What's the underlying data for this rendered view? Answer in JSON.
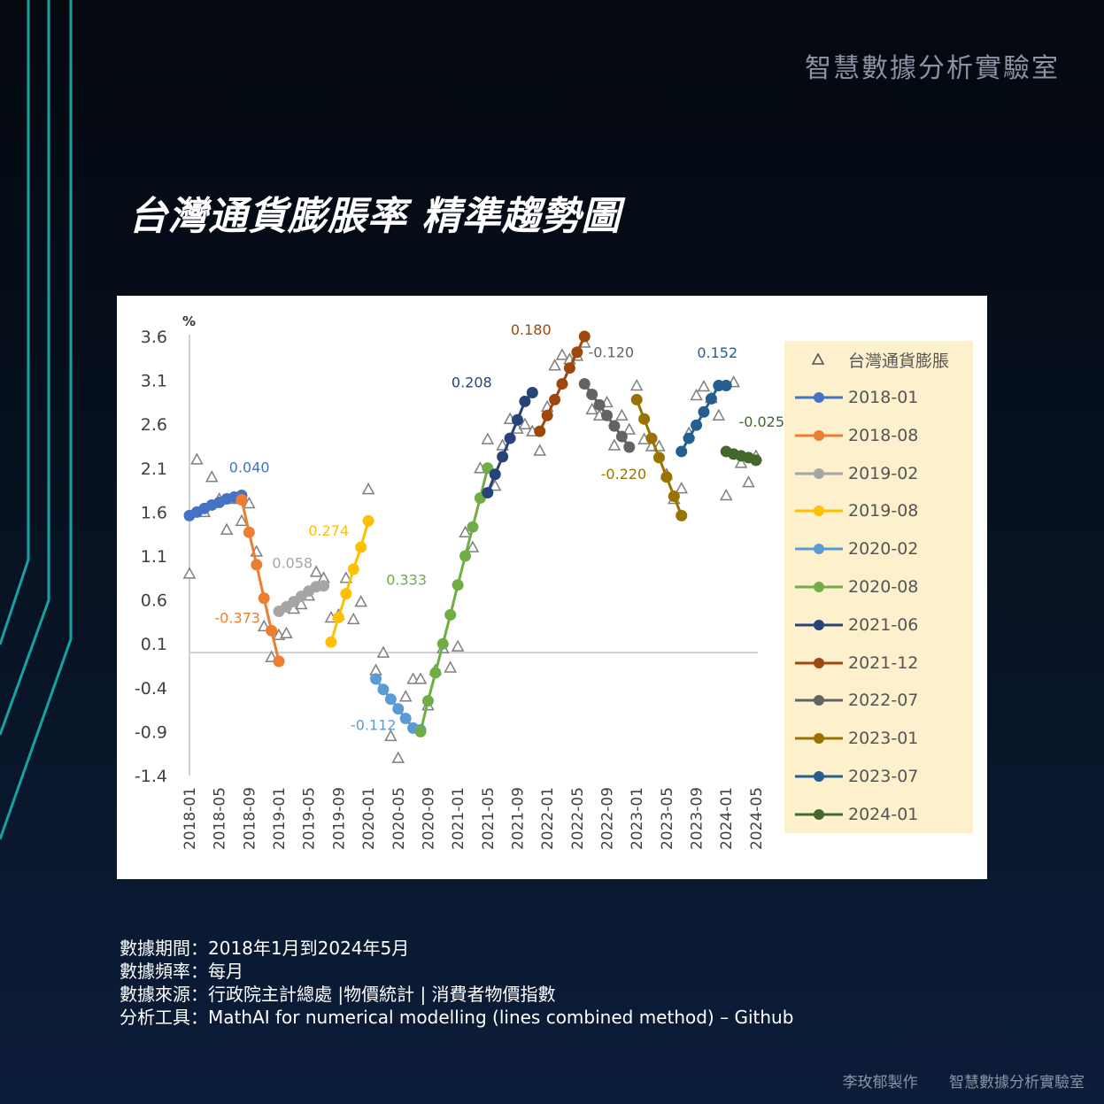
{
  "header": {
    "brand": "智慧數據分析實驗室"
  },
  "page_title": "台灣通貨膨脹率  精準趨勢圖",
  "info": {
    "period": "數據期間：2018年1月到2024年5月",
    "frequency": "數據頻率：每月",
    "source": "數據來源：行政院主計總處 |物價統計 | 消費者物價指數",
    "tool": "分析工具：MathAI  for numerical modelling (lines combined method) – Github"
  },
  "footer": {
    "author": "李玫郁製作",
    "brand": "智慧數據分析實驗室"
  },
  "colors": {
    "accent_line": "#14a3a3",
    "legend_bg": "#fdf0cc"
  },
  "chart_data": {
    "type": "line",
    "y_unit": "%",
    "ylim": [
      -1.4,
      3.6
    ],
    "yticks": [
      3.6,
      3.1,
      2.6,
      2.1,
      1.6,
      1.1,
      0.6,
      0.1,
      -0.4,
      -0.9,
      -1.4
    ],
    "ytick_labels": [
      "3.6",
      "3.1",
      "2.6",
      "2.1",
      "1.6",
      "1.1",
      "0.6",
      "0.1",
      "-0.4",
      "-0.9",
      "-1.4"
    ],
    "xtick_labels": [
      "2018-01",
      "2018-05",
      "2018-09",
      "2019-01",
      "2019-05",
      "2019-09",
      "2020-01",
      "2020-05",
      "2020-09",
      "2021-01",
      "2021-05",
      "2021-09",
      "2022-01",
      "2022-05",
      "2022-09",
      "2023-01",
      "2023-05",
      "2023-09",
      "2024-01",
      "2024-05"
    ],
    "grid": false,
    "legend_position": "right",
    "actual": {
      "name": "台灣通貨膨脹",
      "x": [
        "2018-01",
        "2018-02",
        "2018-03",
        "2018-04",
        "2018-05",
        "2018-06",
        "2018-07",
        "2018-08",
        "2018-09",
        "2018-10",
        "2018-11",
        "2018-12",
        "2019-01",
        "2019-02",
        "2019-03",
        "2019-04",
        "2019-05",
        "2019-06",
        "2019-07",
        "2019-08",
        "2019-09",
        "2019-10",
        "2019-11",
        "2019-12",
        "2020-01",
        "2020-02",
        "2020-03",
        "2020-04",
        "2020-05",
        "2020-06",
        "2020-07",
        "2020-08",
        "2020-09",
        "2020-10",
        "2020-11",
        "2020-12",
        "2021-01",
        "2021-02",
        "2021-03",
        "2021-04",
        "2021-05",
        "2021-06",
        "2021-07",
        "2021-08",
        "2021-09",
        "2021-10",
        "2021-11",
        "2021-12",
        "2022-01",
        "2022-02",
        "2022-03",
        "2022-04",
        "2022-05",
        "2022-06",
        "2022-07",
        "2022-08",
        "2022-09",
        "2022-10",
        "2022-11",
        "2022-12",
        "2023-01",
        "2023-02",
        "2023-03",
        "2023-04",
        "2023-05",
        "2023-06",
        "2023-07",
        "2023-08",
        "2023-09",
        "2023-10",
        "2023-11",
        "2023-12",
        "2024-01",
        "2024-02",
        "2024-03",
        "2024-04",
        "2024-05"
      ],
      "values": [
        0.9,
        2.2,
        1.6,
        2.0,
        1.75,
        1.4,
        1.75,
        1.5,
        1.7,
        1.15,
        0.3,
        -0.05,
        0.2,
        0.22,
        0.5,
        0.55,
        0.65,
        0.92,
        0.85,
        0.4,
        0.43,
        0.85,
        0.38,
        0.58,
        1.86,
        -0.2,
        0.0,
        -0.95,
        -1.2,
        -0.5,
        -0.3,
        -0.3,
        -0.6,
        -0.2,
        0.05,
        -0.17,
        0.07,
        1.37,
        1.2,
        2.1,
        2.43,
        1.9,
        2.36,
        2.66,
        2.55,
        2.6,
        2.52,
        2.3,
        2.8,
        3.27,
        3.39,
        3.34,
        3.38,
        3.53,
        2.77,
        2.7,
        2.85,
        2.36,
        2.7,
        2.54,
        3.04,
        2.43,
        2.35,
        2.35,
        2.03,
        1.75,
        1.87,
        2.5,
        2.93,
        3.03,
        2.9,
        2.7,
        1.79,
        3.08,
        2.16,
        1.94,
        2.24
      ]
    },
    "series": [
      {
        "name": "2018-01",
        "color": "#4472c4",
        "x": [
          "2018-01",
          "2018-02",
          "2018-03",
          "2018-04",
          "2018-05",
          "2018-06",
          "2018-07",
          "2018-08"
        ],
        "values": [
          1.56,
          1.6,
          1.64,
          1.68,
          1.71,
          1.75,
          1.77,
          1.79
        ],
        "slope_label": "0.040"
      },
      {
        "name": "2018-08",
        "color": "#ed7d31",
        "x": [
          "2018-08",
          "2018-09",
          "2018-10",
          "2018-11",
          "2018-12",
          "2019-01"
        ],
        "values": [
          1.74,
          1.37,
          1.0,
          0.62,
          0.25,
          -0.1
        ],
        "slope_label": "-0.373"
      },
      {
        "name": "2019-02",
        "color": "#a5a5a5",
        "x": [
          "2019-01",
          "2019-02",
          "2019-03",
          "2019-04",
          "2019-05",
          "2019-06",
          "2019-07"
        ],
        "values": [
          0.47,
          0.52,
          0.58,
          0.64,
          0.7,
          0.75,
          0.76
        ],
        "slope_label": "0.058"
      },
      {
        "name": "2019-08",
        "color": "#ffc000",
        "x": [
          "2019-08",
          "2019-09",
          "2019-10",
          "2019-11",
          "2019-12",
          "2020-01"
        ],
        "values": [
          0.12,
          0.4,
          0.67,
          0.95,
          1.2,
          1.5
        ],
        "slope_label": "0.274"
      },
      {
        "name": "2020-02",
        "color": "#5b9bd5",
        "x": [
          "2020-02",
          "2020-03",
          "2020-04",
          "2020-05",
          "2020-06",
          "2020-07",
          "2020-08"
        ],
        "values": [
          -0.3,
          -0.42,
          -0.53,
          -0.64,
          -0.75,
          -0.86,
          -0.88
        ],
        "slope_label": "-0.112"
      },
      {
        "name": "2020-08",
        "color": "#70ad47",
        "x": [
          "2020-08",
          "2020-09",
          "2020-10",
          "2020-11",
          "2020-12",
          "2021-01",
          "2021-02",
          "2021-03",
          "2021-04",
          "2021-05"
        ],
        "values": [
          -0.9,
          -0.55,
          -0.23,
          0.1,
          0.43,
          0.77,
          1.1,
          1.43,
          1.76,
          2.1
        ],
        "slope_label": "0.333"
      },
      {
        "name": "2021-06",
        "color": "#264478",
        "x": [
          "2021-05",
          "2021-06",
          "2021-07",
          "2021-08",
          "2021-09",
          "2021-10",
          "2021-11"
        ],
        "values": [
          1.82,
          2.03,
          2.23,
          2.44,
          2.65,
          2.86,
          2.96
        ],
        "slope_label": "0.208"
      },
      {
        "name": "2021-12",
        "color": "#9e480e",
        "x": [
          "2021-12",
          "2022-01",
          "2022-02",
          "2022-03",
          "2022-04",
          "2022-05",
          "2022-06"
        ],
        "values": [
          2.52,
          2.7,
          2.88,
          3.06,
          3.24,
          3.42,
          3.6
        ],
        "slope_label": "0.180"
      },
      {
        "name": "2022-07",
        "color": "#636363",
        "x": [
          "2022-06",
          "2022-07",
          "2022-08",
          "2022-09",
          "2022-10",
          "2022-11",
          "2022-12"
        ],
        "values": [
          3.06,
          2.94,
          2.82,
          2.7,
          2.58,
          2.46,
          2.34
        ],
        "slope_label": "-0.120"
      },
      {
        "name": "2023-01",
        "color": "#997300",
        "x": [
          "2023-01",
          "2023-02",
          "2023-03",
          "2023-04",
          "2023-05",
          "2023-06",
          "2023-07"
        ],
        "values": [
          2.88,
          2.66,
          2.44,
          2.22,
          2.0,
          1.78,
          1.56
        ],
        "slope_label": "-0.220"
      },
      {
        "name": "2023-07",
        "color": "#255e91",
        "x": [
          "2023-07",
          "2023-08",
          "2023-09",
          "2023-10",
          "2023-11",
          "2023-12",
          "2024-01"
        ],
        "values": [
          2.29,
          2.44,
          2.59,
          2.74,
          2.89,
          3.04,
          3.04
        ],
        "slope_label": "0.152"
      },
      {
        "name": "2024-01",
        "color": "#43682b",
        "x": [
          "2024-01",
          "2024-02",
          "2024-03",
          "2024-04",
          "2024-05"
        ],
        "values": [
          2.29,
          2.26,
          2.24,
          2.22,
          2.19
        ],
        "slope_label": "-0.025"
      }
    ]
  }
}
